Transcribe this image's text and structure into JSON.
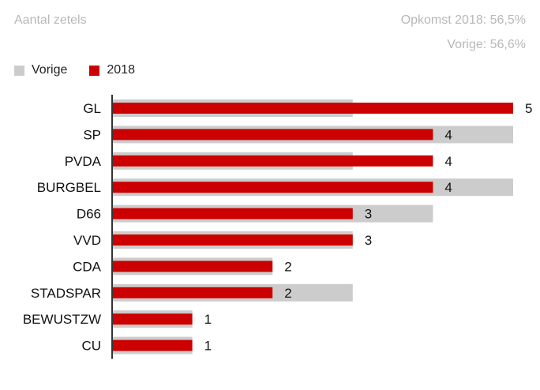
{
  "header": {
    "title": "Aantal zetels",
    "turnout": "Opkomst 2018: 56,5%",
    "previous_turnout": "Vorige: 56,6%"
  },
  "legend": [
    {
      "label": "Vorige",
      "color": "#cccccc"
    },
    {
      "label": "2018",
      "color": "#cc0000"
    }
  ],
  "chart_data": {
    "type": "bar",
    "orientation": "horizontal",
    "title": "Aantal zetels",
    "categories": [
      "GL",
      "SP",
      "PVDA",
      "BURGBEL",
      "D66",
      "VVD",
      "CDA",
      "STADSPAR",
      "BEWUSTZW",
      "CU"
    ],
    "series": [
      {
        "name": "Vorige",
        "color": "#cccccc",
        "values": [
          3,
          5,
          3,
          5,
          4,
          3,
          2,
          3,
          1,
          1
        ]
      },
      {
        "name": "2018",
        "color": "#cc0000",
        "values": [
          5,
          4,
          4,
          4,
          3,
          3,
          2,
          2,
          1,
          1
        ]
      }
    ],
    "value_labels": [
      "5",
      "4",
      "4",
      "4",
      "3",
      "3",
      "2",
      "2",
      "1",
      "1"
    ],
    "xlim": [
      0,
      5
    ],
    "grid": false,
    "legend_position": "top-left"
  }
}
